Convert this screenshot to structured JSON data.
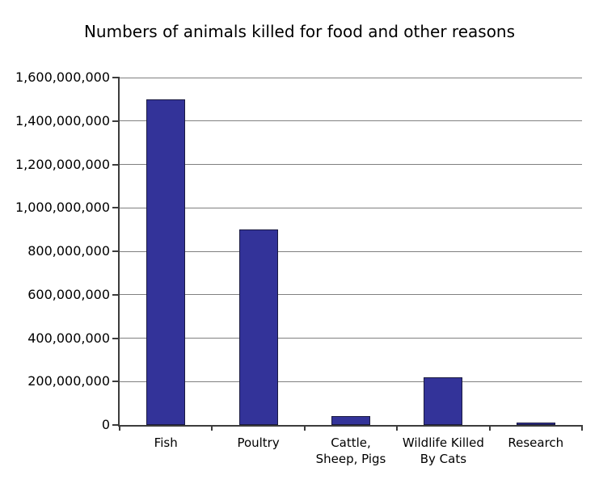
{
  "chart_data": {
    "type": "bar",
    "title": "Numbers of animals killed for food and other reasons",
    "categories": [
      "Fish",
      "Poultry",
      "Cattle,\nSheep, Pigs",
      "Wildlife Killed\nBy Cats",
      "Research"
    ],
    "values": [
      1500000000,
      900000000,
      40000000,
      220000000,
      10000000
    ],
    "xlabel": "",
    "ylabel": "",
    "ylim": [
      0,
      1600000000
    ],
    "ytick_step": 200000000,
    "ytick_labels": [
      "0",
      "200,000,000",
      "400,000,000",
      "600,000,000",
      "800,000,000",
      "1,000,000,000",
      "1,200,000,000",
      "1,400,000,000",
      "1,600,000,000"
    ],
    "grid": true,
    "legend": false,
    "colors": {
      "bar_fill": "#333399",
      "bar_border": "#1a1a40",
      "gridline": "#808080",
      "axis": "#3c3c3c",
      "background": "#ffffff",
      "text": "#000000"
    }
  }
}
